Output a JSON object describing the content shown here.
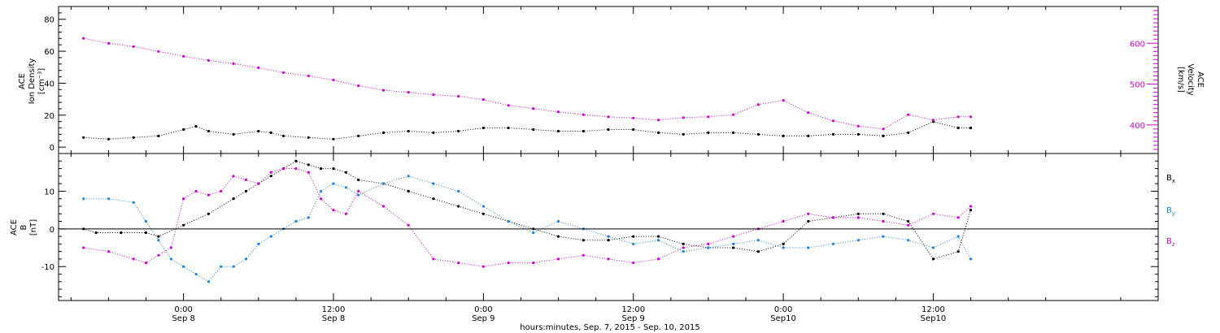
{
  "chart_data": [
    {
      "type": "scatter",
      "panel": "top",
      "ylabel_left": [
        "ACE",
        "Ion Density",
        "[cm⁻³]"
      ],
      "ylabel_right": [
        "ACE",
        "Velocity",
        "[km/s]"
      ],
      "ylim_left": [
        -4,
        88
      ],
      "ylim_right": [
        330,
        690
      ],
      "yticks_left": [
        "0",
        "20",
        "40",
        "60",
        "80"
      ],
      "yticks_right": [
        "400",
        "500",
        "600"
      ],
      "series": [
        {
          "color": "#000000",
          "axis": "left",
          "x": [
            -8,
            -6,
            -4,
            -2,
            0,
            1,
            2,
            4,
            6,
            7,
            8,
            10,
            12,
            14,
            16,
            18,
            20,
            22,
            24,
            26,
            28,
            30,
            32,
            34,
            36,
            38,
            40,
            42,
            44,
            46,
            48,
            50,
            52,
            54,
            56,
            58,
            60,
            62,
            63
          ],
          "y": [
            6,
            5,
            6,
            7,
            11,
            13,
            10,
            8,
            10,
            9,
            7,
            6,
            5,
            7,
            9,
            10,
            9,
            10,
            12,
            12,
            11,
            10,
            10,
            11,
            11,
            9,
            8,
            9,
            9,
            8,
            7,
            7,
            8,
            8,
            7,
            9,
            16,
            12,
            12
          ]
        },
        {
          "color": "#cc00cc",
          "axis": "right",
          "x": [
            -8,
            -6,
            -4,
            -2,
            0,
            2,
            4,
            6,
            8,
            10,
            12,
            14,
            16,
            18,
            20,
            22,
            24,
            26,
            28,
            30,
            32,
            34,
            36,
            38,
            40,
            42,
            44,
            46,
            48,
            50,
            52,
            54,
            56,
            58,
            60,
            62,
            63
          ],
          "y": [
            612,
            600,
            592,
            580,
            568,
            558,
            550,
            540,
            528,
            520,
            510,
            496,
            485,
            480,
            474,
            470,
            462,
            448,
            440,
            432,
            425,
            420,
            417,
            412,
            418,
            420,
            425,
            450,
            460,
            430,
            410,
            397,
            390,
            425,
            412,
            420,
            420
          ]
        }
      ]
    },
    {
      "type": "scatter",
      "panel": "bottom",
      "ylabel": [
        "ACE",
        "B",
        "[nT]"
      ],
      "ylim": [
        -19,
        20
      ],
      "yticks": [
        "-10",
        "0",
        "10"
      ],
      "zero_line": true,
      "legend": "right",
      "series": [
        {
          "name": "Bx",
          "color": "#000000",
          "x": [
            -8,
            -7,
            -5,
            -3,
            -2,
            0,
            2,
            4,
            5,
            6,
            7,
            8,
            9,
            10,
            11,
            12,
            13,
            14,
            16,
            18,
            20,
            22,
            24,
            26,
            28,
            30,
            32,
            34,
            36,
            38,
            40,
            42,
            44,
            46,
            48,
            50,
            52,
            54,
            56,
            58,
            60,
            62,
            63
          ],
          "y": [
            0,
            -1,
            -1,
            -1,
            -2,
            1,
            4,
            8,
            10,
            12,
            14,
            16,
            18,
            17,
            16,
            16,
            15,
            13,
            12,
            10,
            8,
            6,
            4,
            2,
            0,
            -2,
            -3,
            -3,
            -2,
            -2,
            -4,
            -5,
            -5,
            -6,
            -4,
            2,
            3,
            4,
            4,
            2,
            -8,
            -6,
            5
          ]
        },
        {
          "name": "By",
          "color": "#1f82dc",
          "x": [
            -8,
            -6,
            -4,
            -3,
            -2,
            -1,
            0,
            1,
            2,
            3,
            4,
            5,
            6,
            7,
            8,
            9,
            10,
            11,
            12,
            13,
            14,
            16,
            18,
            20,
            22,
            24,
            26,
            28,
            30,
            32,
            34,
            36,
            38,
            40,
            42,
            44,
            46,
            48,
            50,
            52,
            54,
            56,
            58,
            60,
            62,
            63
          ],
          "y": [
            8,
            8,
            7,
            2,
            -3,
            -8,
            -10,
            -12,
            -14,
            -10,
            -10,
            -8,
            -4,
            -2,
            0,
            2,
            3,
            10,
            12,
            11,
            9,
            12,
            14,
            12,
            10,
            6,
            2,
            -1,
            2,
            0,
            -2,
            -4,
            -3,
            -6,
            -5,
            -4,
            -3,
            -5,
            -5,
            -4,
            -3,
            -2,
            -3,
            -5,
            -2,
            -8
          ]
        },
        {
          "name": "Bz",
          "color": "#cc00cc",
          "x": [
            -8,
            -6,
            -4,
            -3,
            -2,
            -1,
            0,
            1,
            2,
            3,
            4,
            5,
            6,
            7,
            8,
            9,
            10,
            11,
            12,
            13,
            14,
            16,
            18,
            20,
            22,
            24,
            26,
            28,
            30,
            32,
            34,
            36,
            38,
            40,
            42,
            44,
            46,
            48,
            50,
            52,
            54,
            56,
            58,
            60,
            62,
            63
          ],
          "y": [
            -5,
            -6,
            -8,
            -9,
            -7,
            -5,
            8,
            10,
            9,
            10,
            14,
            13,
            12,
            15,
            16,
            16,
            15,
            8,
            5,
            4,
            10,
            6,
            1,
            -8,
            -9,
            -10,
            -9,
            -9,
            -8,
            -7,
            -8,
            -9,
            -8,
            -5,
            -4,
            -2,
            0,
            2,
            4,
            3,
            3,
            2,
            1,
            4,
            3,
            6
          ]
        }
      ]
    }
  ],
  "x_axis": {
    "xlim": [
      -10,
      78
    ],
    "ticks": [
      {
        "h": 0,
        "time": "0:00",
        "date": "Sep 8"
      },
      {
        "h": 12,
        "time": "12:00",
        "date": "Sep 8"
      },
      {
        "h": 24,
        "time": "0:00",
        "date": "Sep 9"
      },
      {
        "h": 36,
        "time": "12:00",
        "date": "Sep 9"
      },
      {
        "h": 48,
        "time": "0:00",
        "date": "Sep10"
      },
      {
        "h": 60,
        "time": "12:00",
        "date": "Sep10"
      }
    ],
    "label": "hours:minutes, Sep.  7, 2015 - Sep. 10, 2015"
  },
  "legend": {
    "bx": {
      "base": "B",
      "sub": "x"
    },
    "by": {
      "base": "B",
      "sub": "y"
    },
    "bz": {
      "base": "B",
      "sub": "z"
    }
  }
}
